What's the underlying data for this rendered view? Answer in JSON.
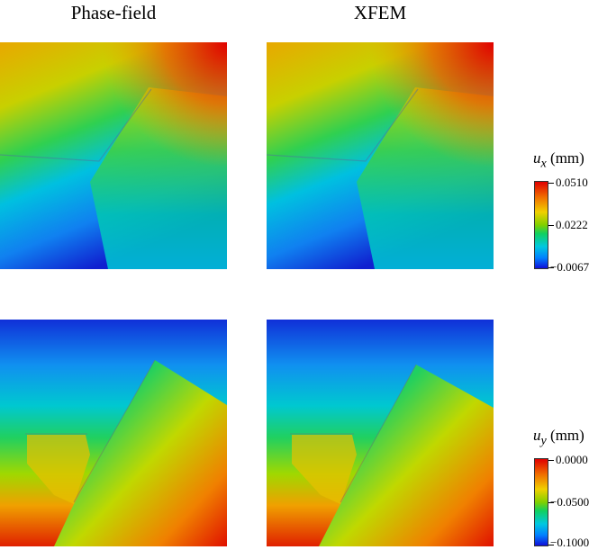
{
  "columns": {
    "left": "Phase-field",
    "right": "XFEM"
  },
  "legend_ux": {
    "symbol": "u",
    "subscript": "x",
    "unit": "(mm)",
    "max": "0.0510",
    "mid": "0.0222",
    "min": "−0.0067"
  },
  "legend_uy": {
    "symbol": "u",
    "subscript": "y",
    "unit": "(mm)",
    "max": "0.0000",
    "mid": "−0.0500",
    "min": "−0.1000"
  },
  "colors": {
    "red": "#e00000",
    "orange": "#f07000",
    "yellow": "#f0d000",
    "green": "#10d060",
    "cyan": "#00c8e0",
    "blue": "#1010d8"
  }
}
